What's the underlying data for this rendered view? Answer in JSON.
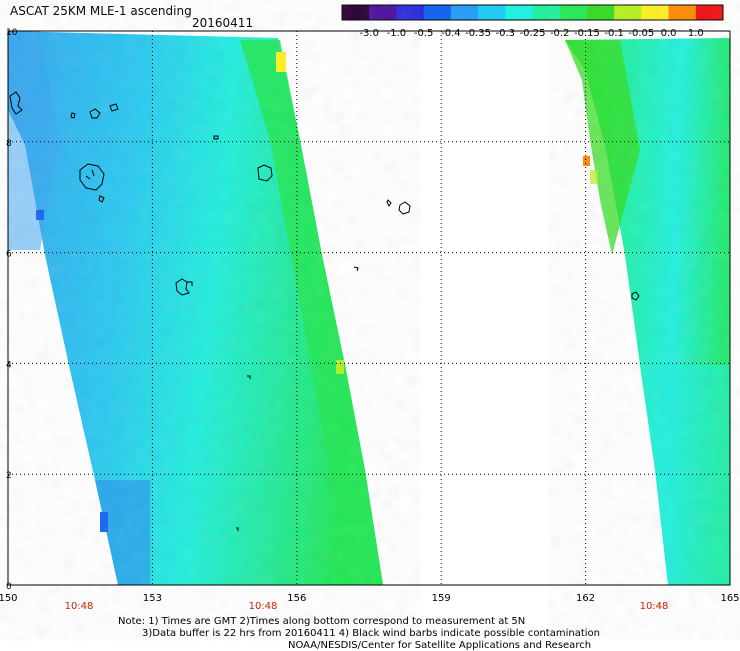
{
  "header": {
    "title": "ASCAT 25KM MLE-1 ascending",
    "date": "20160411"
  },
  "colorbar": {
    "labels": [
      "-3.0",
      "-1.0",
      "-0.5",
      "-0.4",
      "-0.35",
      "-0.3",
      "-0.25",
      "-0.2",
      "-0.15",
      "-0.1",
      "-0.05",
      "0.0",
      "1.0"
    ],
    "colors": [
      "#2a0033",
      "#4a10a0",
      "#2a2adf",
      "#1565ef",
      "#2a9ef5",
      "#22ccf5",
      "#22f0e0",
      "#22f0a0",
      "#22ea55",
      "#33dd20",
      "#b5f020",
      "#fff020",
      "#ff8a00",
      "#ee1010"
    ]
  },
  "map": {
    "lon_ticks": [
      "150",
      "153",
      "156",
      "159",
      "162",
      "165"
    ],
    "lat_ticks": [
      "0",
      "2",
      "4",
      "6",
      "8",
      "10"
    ],
    "time_labels": [
      "10:48",
      "10:48",
      "10:48"
    ],
    "time_color": "#cc2200",
    "lon_range": [
      150,
      165
    ],
    "lat_range": [
      0,
      10
    ]
  },
  "notes": {
    "line1": "Note: 1) Times are GMT 2)Times along bottom correspond to measurement at 5N",
    "line2": "3)Data buffer is 22 hrs from 20160411 4) Black wind barbs indicate possible contamination",
    "line3": "NOAA/NESDIS/Center for Satellite Applications and Research"
  }
}
